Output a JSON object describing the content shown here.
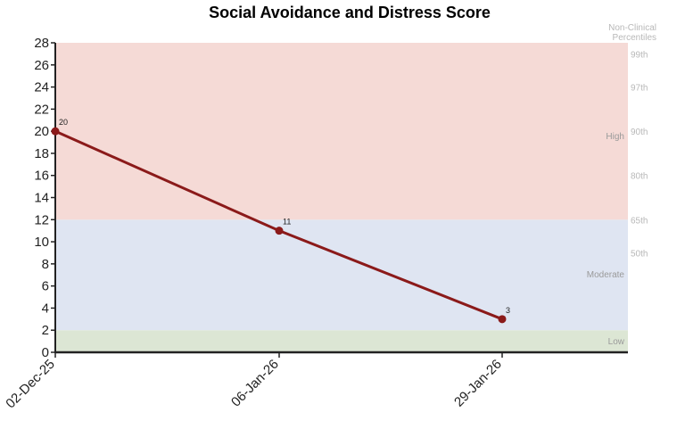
{
  "chart_data": {
    "type": "line",
    "title": "Social Avoidance and Distress Score",
    "categories": [
      "02-Dec-25",
      "06-Jan-26",
      "29-Jan-26"
    ],
    "series": [
      {
        "values": [
          20,
          11,
          3
        ],
        "color": "#8b1a1a"
      }
    ],
    "data_labels": [
      "20",
      "11",
      "3"
    ],
    "ylim": [
      0,
      28
    ],
    "yticks": [
      0,
      2,
      4,
      6,
      8,
      10,
      12,
      14,
      16,
      18,
      20,
      22,
      24,
      26,
      28
    ],
    "bands": [
      {
        "label": "Low",
        "from": 0,
        "to": 2,
        "color": "#dce6d4"
      },
      {
        "label": "Moderate",
        "from": 2,
        "to": 12,
        "color": "#dfe5f2"
      },
      {
        "label": "High",
        "from": 12,
        "to": 28,
        "color": "#f5dad6"
      }
    ],
    "percentile_header": [
      "Non-Clinical",
      "Percentiles"
    ],
    "percentiles": [
      {
        "label": "99th",
        "y": 27
      },
      {
        "label": "97th",
        "y": 24
      },
      {
        "label": "90th",
        "y": 20
      },
      {
        "label": "80th",
        "y": 16
      },
      {
        "label": "65th",
        "y": 12
      },
      {
        "label": "50th",
        "y": 9
      }
    ],
    "grid": false
  }
}
